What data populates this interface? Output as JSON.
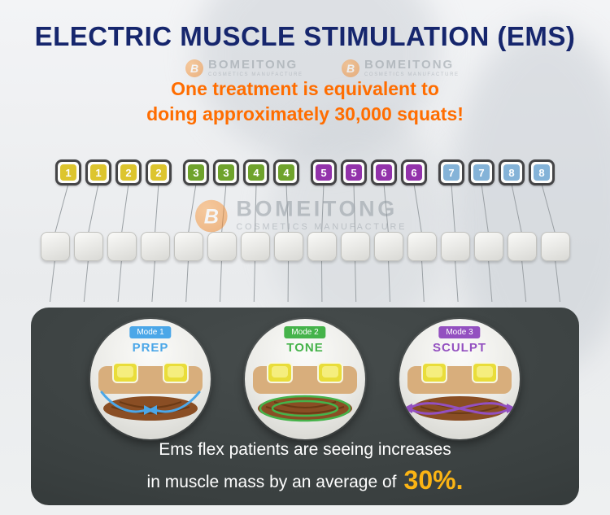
{
  "title": "ELECTRIC MUSCLE STIMULATION (EMS)",
  "subtitle": {
    "line1": "One treatment is equivalent to",
    "line2": "doing approximately 30,000 squats!"
  },
  "watermark": {
    "brand": "BOMEITONG",
    "tagline": "COSMETICS MANUFACTURE",
    "logo_letter": "B",
    "logo_color": "#ee7c19"
  },
  "electrodes": {
    "blank_count": 16,
    "groups": [
      {
        "color": "#ddc52e",
        "labels": [
          "1",
          "1",
          "2",
          "2"
        ]
      },
      {
        "color": "#6fa32c",
        "labels": [
          "3",
          "3",
          "4",
          "4"
        ]
      },
      {
        "color": "#9333ab",
        "labels": [
          "5",
          "5",
          "6",
          "6"
        ]
      },
      {
        "color": "#84b3d8",
        "labels": [
          "7",
          "7",
          "8",
          "8"
        ]
      }
    ]
  },
  "modes": [
    {
      "badge": "Mode 1",
      "name": "PREP",
      "color": "#4ba7e8"
    },
    {
      "badge": "Mode 2",
      "name": "TONE",
      "color": "#45b34a"
    },
    {
      "badge": "Mode 3",
      "name": "SCULPT",
      "color": "#9350c0"
    }
  ],
  "footer": {
    "line1": "Ems flex patients are seeing increases",
    "line2_prefix": "in muscle mass by an average of",
    "percent": "30%.",
    "percent_color": "#fbb414"
  },
  "colors": {
    "title": "#16266d",
    "subtitle": "#ff6d00",
    "panel": "#3a4040"
  }
}
